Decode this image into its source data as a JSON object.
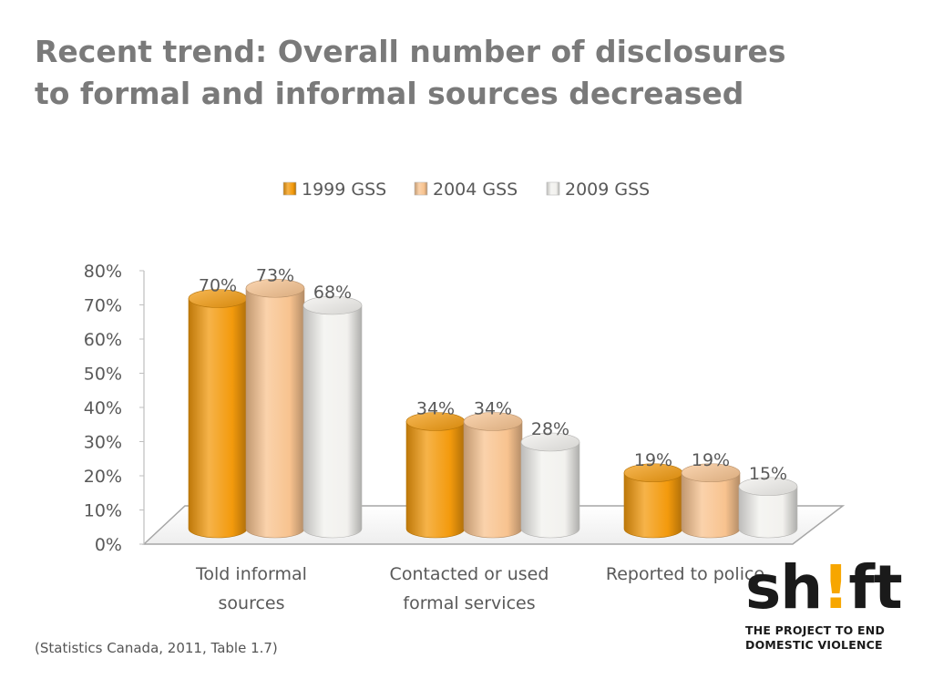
{
  "title": {
    "line1": "Recent trend: Overall number of disclosures",
    "line2": "to formal and informal sources decreased"
  },
  "caption": "(Statistics Canada, 2011, Table 1.7)",
  "logo": {
    "word_before": "sh",
    "word_mark": "!",
    "word_after": "ft",
    "tagline1": "THE PROJECT TO END",
    "tagline2": "DOMESTIC VIOLENCE"
  },
  "colors": {
    "series": [
      "#f39a0c",
      "#f8c38f",
      "#f2f1ee"
    ],
    "logo_accent": "#f7a600",
    "title": "#7a7a7a"
  },
  "chart_data": {
    "type": "bar",
    "style": "3d-cylinder",
    "categories": [
      [
        "Told informal",
        "sources"
      ],
      [
        "Contacted or used",
        "formal services"
      ],
      [
        "Reported to police"
      ]
    ],
    "series": [
      {
        "name": "1999 GSS",
        "values": [
          70,
          34,
          19
        ],
        "labels": [
          "70%",
          "34%",
          "19%"
        ]
      },
      {
        "name": "2004 GSS",
        "values": [
          73,
          34,
          19
        ],
        "labels": [
          "73%",
          "34%",
          "19%"
        ]
      },
      {
        "name": "2009 GSS",
        "values": [
          68,
          28,
          15
        ],
        "labels": [
          "68%",
          "28%",
          "15%"
        ]
      }
    ],
    "yticks": [
      "0%",
      "10%",
      "20%",
      "30%",
      "40%",
      "50%",
      "60%",
      "70%",
      "80%"
    ],
    "ylim": [
      0,
      80
    ],
    "legend_position": "top",
    "grid": false
  }
}
